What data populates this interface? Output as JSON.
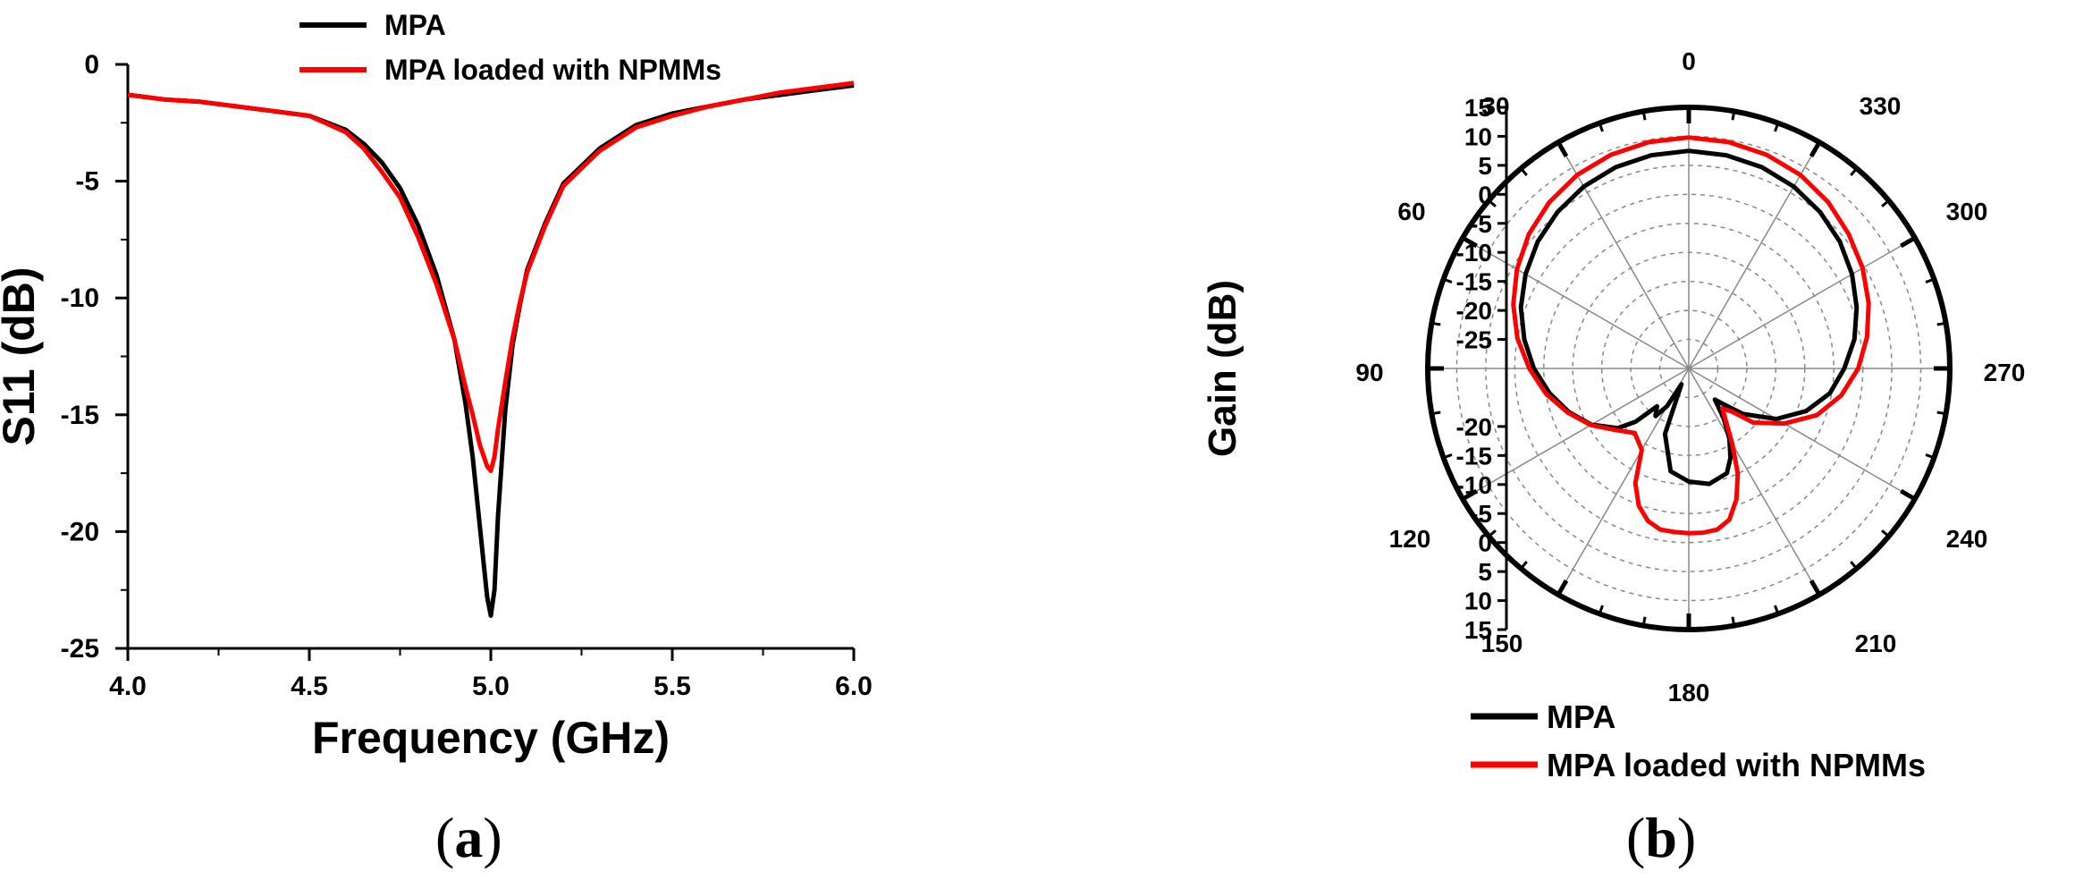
{
  "chart_data": [
    {
      "type": "line",
      "caption": "a",
      "xlabel": "Frequency (GHz)",
      "ylabel": "S11 (dB)",
      "xlim": [
        4.0,
        6.0
      ],
      "ylim": [
        -25,
        0
      ],
      "x_ticks": [
        "4.0",
        "4.5",
        "5.0",
        "5.5",
        "6.0"
      ],
      "y_ticks": [
        "0",
        "-5",
        "-10",
        "-15",
        "-20",
        "-25"
      ],
      "grid": false,
      "legend_position": "top-center",
      "colors": {
        "MPA": "#000000",
        "MPA loaded with  NPMMs": "#ff0000"
      },
      "series": [
        {
          "name": "MPA",
          "x": [
            4.0,
            4.1,
            4.2,
            4.3,
            4.4,
            4.5,
            4.6,
            4.65,
            4.7,
            4.75,
            4.8,
            4.85,
            4.9,
            4.93,
            4.95,
            4.97,
            4.99,
            5.0,
            5.01,
            5.02,
            5.04,
            5.06,
            5.08,
            5.1,
            5.15,
            5.2,
            5.3,
            5.4,
            5.5,
            5.6,
            5.7,
            5.8,
            5.9,
            6.0
          ],
          "y": [
            -1.3,
            -1.5,
            -1.6,
            -1.8,
            -2.0,
            -2.2,
            -2.8,
            -3.4,
            -4.2,
            -5.3,
            -6.9,
            -9.0,
            -11.8,
            -14.5,
            -16.8,
            -19.8,
            -22.8,
            -23.6,
            -22.5,
            -19.3,
            -14.8,
            -12.0,
            -10.3,
            -8.8,
            -6.8,
            -5.1,
            -3.6,
            -2.6,
            -2.1,
            -1.8,
            -1.5,
            -1.3,
            -1.1,
            -0.9
          ]
        },
        {
          "name": "MPA loaded with  NPMMs",
          "x": [
            4.0,
            4.1,
            4.2,
            4.3,
            4.4,
            4.5,
            4.6,
            4.65,
            4.7,
            4.75,
            4.8,
            4.85,
            4.9,
            4.93,
            4.95,
            4.97,
            4.99,
            5.0,
            5.01,
            5.02,
            5.04,
            5.06,
            5.08,
            5.1,
            5.15,
            5.2,
            5.3,
            5.4,
            5.5,
            5.6,
            5.7,
            5.8,
            5.9,
            6.0
          ],
          "y": [
            -1.3,
            -1.5,
            -1.6,
            -1.8,
            -2.0,
            -2.2,
            -2.9,
            -3.6,
            -4.6,
            -5.7,
            -7.4,
            -9.4,
            -11.8,
            -13.8,
            -15.0,
            -16.3,
            -17.2,
            -17.4,
            -16.8,
            -15.6,
            -13.6,
            -11.7,
            -10.2,
            -8.9,
            -6.9,
            -5.2,
            -3.7,
            -2.7,
            -2.2,
            -1.8,
            -1.5,
            -1.2,
            -1.0,
            -0.8
          ]
        }
      ]
    },
    {
      "type": "polar",
      "caption": "b",
      "ylabel": "Gain (dB)",
      "angle_ticks": [
        "0",
        "330",
        "300",
        "270",
        "240",
        "210",
        "180",
        "150",
        "120",
        "90",
        "60",
        "30"
      ],
      "radial_ticks_upper": [
        "15",
        "10",
        "5",
        "0",
        "-5",
        "-10",
        "-15",
        "-20",
        "-25"
      ],
      "radial_ticks_lower": [
        "-20",
        "-15",
        "-10",
        "-5",
        "0",
        "5",
        "10",
        "15"
      ],
      "rlim": [
        -30,
        15
      ],
      "grid": true,
      "legend_position": "bottom",
      "colors": {
        "MPA": "#000000",
        "MPA  loaded with NPMMs": "#ff0000"
      },
      "series": [
        {
          "name": "MPA",
          "theta": [
            0,
            10,
            20,
            30,
            40,
            50,
            60,
            70,
            80,
            90,
            100,
            110,
            120,
            130,
            135,
            140,
            145,
            150,
            155,
            160,
            170,
            180,
            190,
            200,
            205,
            210,
            215,
            220,
            225,
            230,
            240,
            250,
            260,
            270,
            280,
            290,
            300,
            310,
            320,
            330,
            340,
            350
          ],
          "r": [
            7.5,
            7.3,
            6.9,
            6.2,
            5.2,
            4.0,
            2.5,
            0.8,
            -1.2,
            -3.3,
            -5.6,
            -8.0,
            -10.6,
            -14.0,
            -17.0,
            -21.5,
            -20.0,
            -22.5,
            -27.0,
            -18.0,
            -12.0,
            -10.5,
            -9.8,
            -10.8,
            -13.0,
            -16.0,
            -19.5,
            -23.0,
            -21.0,
            -17.8,
            -12.6,
            -8.5,
            -5.3,
            -3.2,
            -1.0,
            0.8,
            2.5,
            4.0,
            5.2,
            6.2,
            6.9,
            7.3
          ]
        },
        {
          "name": "MPA  loaded with NPMMs",
          "theta": [
            0,
            10,
            20,
            30,
            40,
            50,
            60,
            70,
            80,
            90,
            100,
            110,
            120,
            130,
            140,
            150,
            155,
            160,
            165,
            170,
            175,
            180,
            185,
            190,
            195,
            200,
            205,
            210,
            220,
            225,
            230,
            240,
            250,
            260,
            270,
            280,
            290,
            300,
            310,
            320,
            330,
            340,
            350
          ],
          "r": [
            9.8,
            9.6,
            9.2,
            8.5,
            7.4,
            6.0,
            4.2,
            2.2,
            0.0,
            -2.5,
            -5.0,
            -7.8,
            -10.5,
            -13.5,
            -15.5,
            -13.8,
            -8.2,
            -4.8,
            -2.8,
            -1.8,
            -1.7,
            -1.6,
            -1.6,
            -1.8,
            -3.0,
            -6.0,
            -10.0,
            -15.0,
            -21.0,
            -19.5,
            -15.5,
            -11.0,
            -6.5,
            -3.3,
            -0.8,
            1.2,
            3.0,
            4.6,
            6.0,
            7.4,
            8.5,
            9.2,
            9.6
          ]
        }
      ]
    }
  ]
}
